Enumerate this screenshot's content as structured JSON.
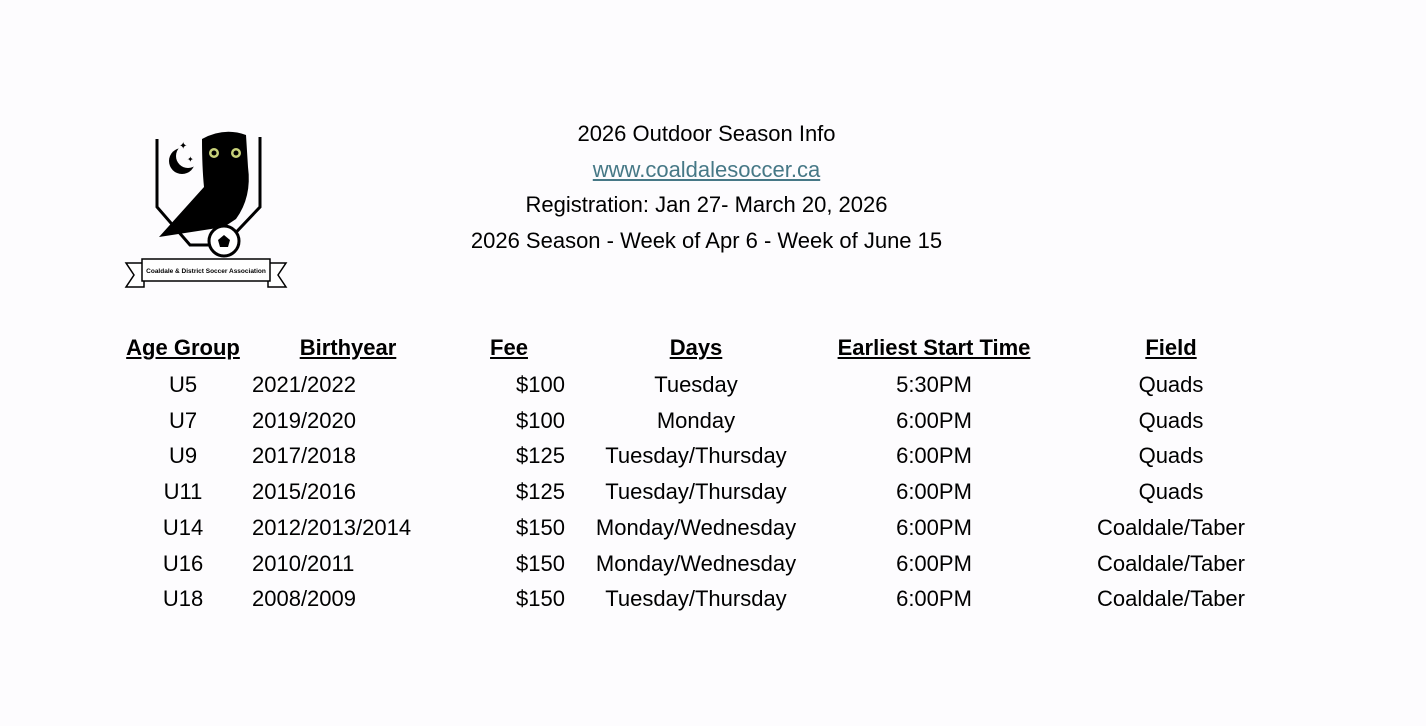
{
  "header": {
    "title": "2026 Outdoor Season Info",
    "website": "www.coaldalesoccer.ca",
    "registration": "Registration: Jan 27- March 20, 2026",
    "season": "2026 Season - Week of Apr 6 - Week of June 15"
  },
  "logo": {
    "text": "Coaldale & District Soccer Association"
  },
  "colors": {
    "link": "#467886"
  },
  "table": {
    "headers": [
      "Age Group",
      "Birthyear",
      "Fee",
      "Days",
      "Earliest Start Time",
      "Field"
    ],
    "rows": [
      [
        "U5",
        "2021/2022",
        "$100",
        "Tuesday",
        "5:30PM",
        "Quads"
      ],
      [
        "U7",
        "2019/2020",
        "$100",
        "Monday",
        "6:00PM",
        "Quads"
      ],
      [
        "U9",
        "2017/2018",
        "$125",
        "Tuesday/Thursday",
        "6:00PM",
        "Quads"
      ],
      [
        "U11",
        "2015/2016",
        "$125",
        "Tuesday/Thursday",
        "6:00PM",
        "Quads"
      ],
      [
        "U14",
        "2012/2013/2014",
        "$150",
        "Monday/Wednesday",
        "6:00PM",
        "Coaldale/Taber"
      ],
      [
        "U16",
        "2010/2011",
        "$150",
        "Monday/Wednesday",
        "6:00PM",
        "Coaldale/Taber"
      ],
      [
        "U18",
        "2008/2009",
        "$150",
        "Tuesday/Thursday",
        "6:00PM",
        "Coaldale/Taber"
      ]
    ]
  }
}
